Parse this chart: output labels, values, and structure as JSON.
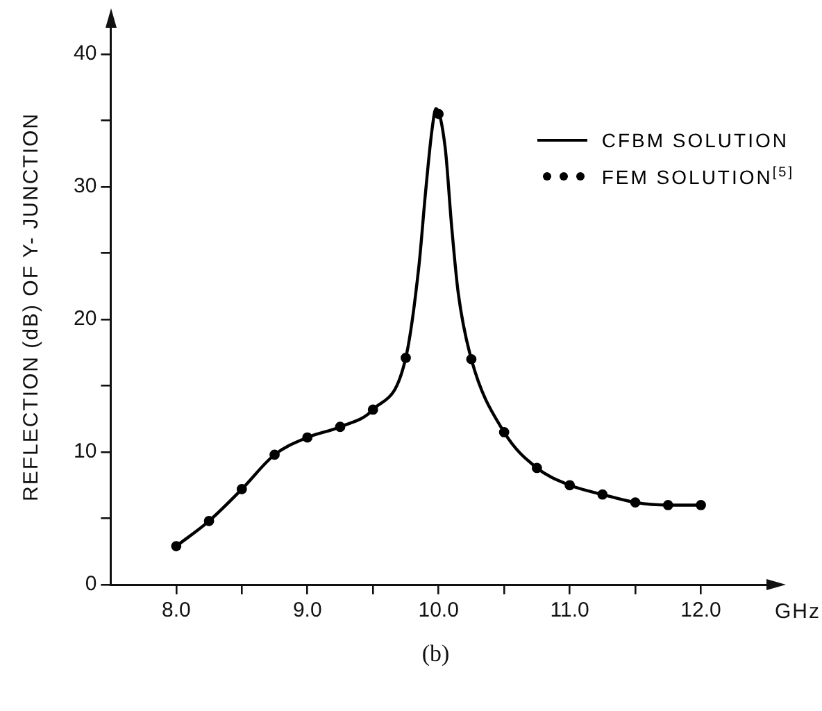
{
  "chart_data": {
    "type": "line",
    "xlabel": "GHz",
    "ylabel": "REFLECTION (dB) OF Y- JUNCTION",
    "xlim": [
      7.5,
      12.5
    ],
    "ylim": [
      0,
      42
    ],
    "xticks": [
      {
        "value": 8,
        "label": "8.0"
      },
      {
        "value": 8.5,
        "label": null
      },
      {
        "value": 9,
        "label": "9.0"
      },
      {
        "value": 9.5,
        "label": null
      },
      {
        "value": 10,
        "label": "10.0"
      },
      {
        "value": 10.5,
        "label": null
      },
      {
        "value": 11,
        "label": "11.0"
      },
      {
        "value": 11.5,
        "label": null
      },
      {
        "value": 12,
        "label": "12.0"
      }
    ],
    "yticks": [
      0,
      {
        "value": 5,
        "label": null
      },
      10,
      {
        "value": 15,
        "label": null
      },
      20,
      {
        "value": 25,
        "label": null
      },
      30,
      {
        "value": 35,
        "label": null
      },
      40
    ],
    "series": [
      {
        "name": "CFBM SOLUTION",
        "color": "#000000",
        "marker": "none",
        "line_style": "solid",
        "x": [
          8.0,
          8.25,
          8.5,
          8.75,
          9.0,
          9.25,
          9.5,
          9.75,
          9.85,
          9.9,
          9.95,
          9.98,
          10.05,
          10.1,
          10.15,
          10.25,
          10.5,
          10.75,
          11.0,
          11.25,
          11.5,
          11.75,
          12.0
        ],
        "values": [
          2.9,
          4.8,
          7.2,
          9.8,
          11.1,
          11.9,
          13.2,
          17.1,
          24,
          29.5,
          34.3,
          35.9,
          33,
          27,
          22,
          17.0,
          11.5,
          8.8,
          7.5,
          6.8,
          6.2,
          6.0,
          6.0
        ]
      },
      {
        "name": "FEM SOLUTION$^{[5]}$",
        "type": "scatter",
        "color": "#000000",
        "marker": "circle",
        "x": [
          8.0,
          8.25,
          8.5,
          8.75,
          9.0,
          9.25,
          9.5,
          9.75,
          10.0,
          10.25,
          10.5,
          10.75,
          11.0,
          11.25,
          11.5,
          11.75,
          12.0
        ],
        "values": [
          2.9,
          4.8,
          7.2,
          9.8,
          11.1,
          11.9,
          13.2,
          17.1,
          35.5,
          17.0,
          11.5,
          8.8,
          7.5,
          6.8,
          6.2,
          6.0,
          6.0
        ]
      }
    ],
    "legend": "top right",
    "grid": false,
    "annotations": [
      "(b)"
    ]
  }
}
